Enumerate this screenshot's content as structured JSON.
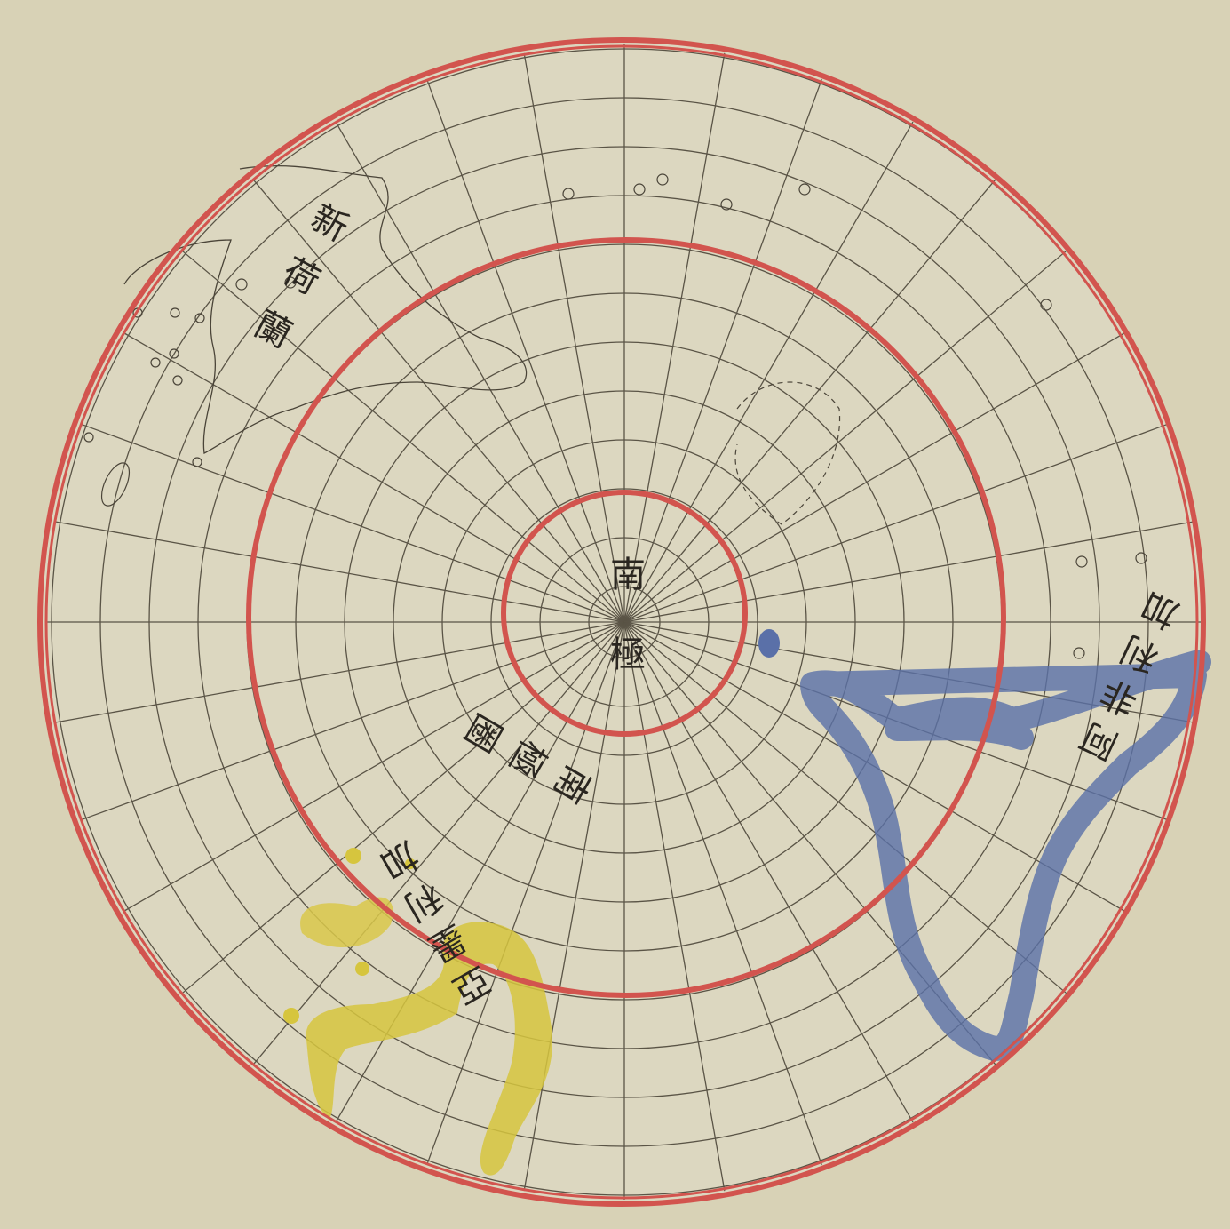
{
  "labels": {
    "pole": "南極",
    "new_holland": "新荷蘭",
    "africa": "阿非利加",
    "america": "亞墨利加",
    "circle": "南極圈"
  }
}
